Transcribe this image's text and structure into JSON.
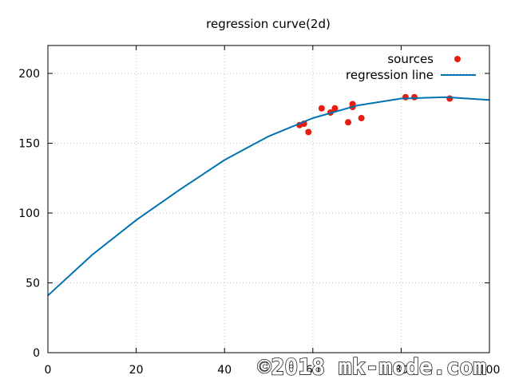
{
  "chart_data": {
    "type": "scatter",
    "title": "regression curve(2d)",
    "xlabel": "",
    "ylabel": "",
    "xlim": [
      0,
      100
    ],
    "ylim": [
      0,
      220
    ],
    "x_ticks": [
      0,
      20,
      40,
      60,
      80,
      100
    ],
    "x_tick_labels": [
      "0",
      "20",
      "40",
      "60",
      "80",
      "100"
    ],
    "y_ticks": [
      0,
      50,
      100,
      150,
      200
    ],
    "y_tick_labels": [
      "0",
      "50",
      "100",
      "150",
      "200"
    ],
    "grid": true,
    "legend_position": "top-right",
    "series": [
      {
        "name": "sources",
        "kind": "points",
        "color": "#e51e10",
        "x": [
          57,
          58,
          59,
          62,
          64,
          65,
          68,
          69,
          69,
          71,
          81,
          83,
          91
        ],
        "y": [
          163,
          164,
          158,
          175,
          172,
          175,
          165,
          178,
          176,
          168,
          183,
          183,
          182
        ]
      },
      {
        "name": "regression line",
        "kind": "line",
        "color": "#0072b2",
        "x": [
          0,
          10,
          20,
          30,
          40,
          50,
          60,
          70,
          80,
          90,
          100
        ],
        "y": [
          41,
          70,
          95,
          117,
          138,
          155,
          168,
          177,
          182,
          183,
          181
        ]
      }
    ]
  },
  "watermark": "©2018 mk-mode.com"
}
